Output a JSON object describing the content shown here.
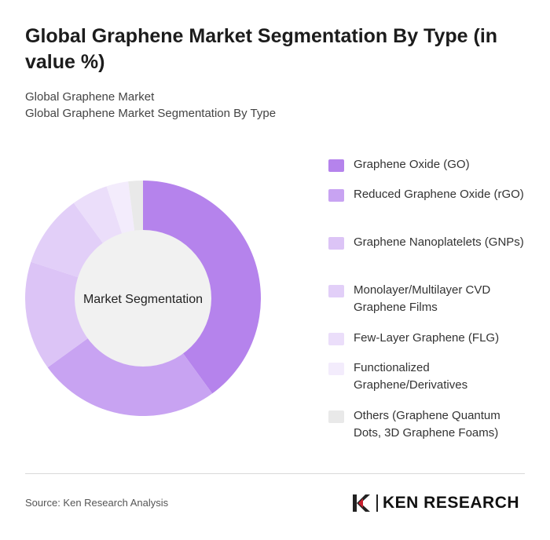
{
  "title": "Global Graphene Market Segmentation By Type (in value %)",
  "breadcrumb": {
    "line1": "Global Graphene Market",
    "line2": "Global Graphene Market Segmentation By Type"
  },
  "chart_data": {
    "type": "pie",
    "center_label": "Market Segmentation",
    "legend_position": "right",
    "categories": [
      "Graphene Oxide (GO)",
      "Reduced Graphene Oxide (rGO)",
      "Graphene Nanoplatelets (GNPs)",
      "Monolayer/Multilayer CVD Graphene Films",
      "Few-Layer Graphene (FLG)",
      "Functionalized Graphene/Derivatives",
      "Others (Graphene Quantum Dots, 3D Graphene Foams)"
    ],
    "values": [
      40,
      25,
      15,
      10,
      5,
      3,
      2
    ],
    "colors": [
      "#b583ec",
      "#c8a3f2",
      "#dcc4f6",
      "#e2cff8",
      "#ebdefa",
      "#f3ecfc",
      "#e9e9e9"
    ]
  },
  "footer": {
    "source": "Source: Ken Research Analysis",
    "logo_text": "KEN RESEARCH"
  }
}
